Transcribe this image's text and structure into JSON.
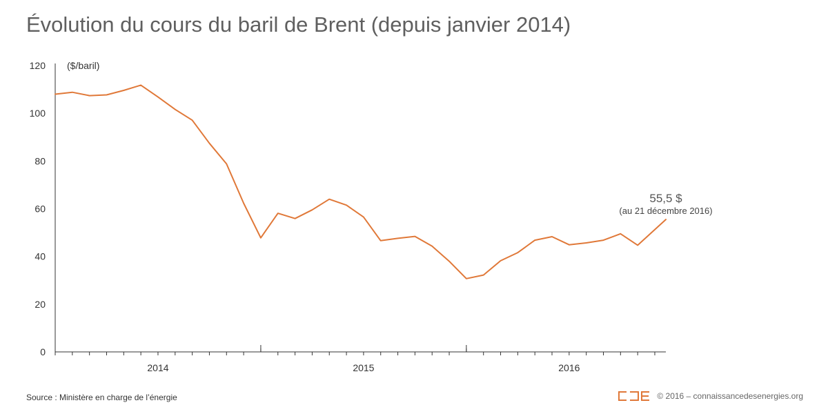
{
  "title": "Évolution du cours du baril de Brent (depuis janvier 2014)",
  "footer": {
    "source": "Source : Ministère en charge de l’énergie",
    "copyright": "© 2016 – connaissancedesenergies.org"
  },
  "colors": {
    "line": "#e07838",
    "axis": "#333333",
    "logo": "#e07838"
  },
  "chart_data": {
    "type": "line",
    "title": "Évolution du cours du baril de Brent (depuis janvier 2014)",
    "xlabel": "",
    "ylabel": "($/baril)",
    "ylim": [
      0,
      120
    ],
    "yticks": [
      0,
      20,
      40,
      60,
      80,
      100,
      120
    ],
    "xlim": [
      "2014-01",
      "2016-12-21"
    ],
    "grid": false,
    "year_labels": [
      "2014",
      "2015",
      "2016"
    ],
    "series": [
      {
        "x": [
          "2014-01",
          "2014-02",
          "2014-03",
          "2014-04",
          "2014-05",
          "2014-06",
          "2014-07",
          "2014-08",
          "2014-09",
          "2014-10",
          "2014-11",
          "2014-12",
          "2015-01",
          "2015-02",
          "2015-03",
          "2015-04",
          "2015-05",
          "2015-06",
          "2015-07",
          "2015-08",
          "2015-09",
          "2015-10",
          "2015-11",
          "2015-12",
          "2016-01",
          "2016-02",
          "2016-03",
          "2016-04",
          "2016-05",
          "2016-06",
          "2016-07",
          "2016-08",
          "2016-09",
          "2016-10",
          "2016-11",
          "2016-12-21"
        ],
        "values": [
          108,
          108.8,
          107.4,
          107.7,
          109.6,
          111.8,
          106.8,
          101.6,
          97.1,
          87.4,
          78.8,
          62.3,
          47.8,
          58.1,
          55.9,
          59.5,
          64.0,
          61.5,
          56.5,
          46.6,
          47.6,
          48.4,
          44.3,
          38.0,
          30.7,
          32.2,
          38.2,
          41.6,
          46.8,
          48.3,
          44.9,
          45.7,
          46.8,
          49.5,
          44.7,
          55.5
        ]
      }
    ],
    "annotation": {
      "value": "55,5 $",
      "note": "(au 21 décembre 2016)"
    }
  }
}
